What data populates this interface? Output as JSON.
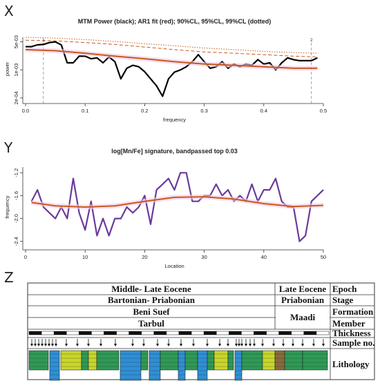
{
  "panels": {
    "x_letter": "X",
    "y_letter": "Y",
    "z_letter": "Z"
  },
  "chart_data": [
    {
      "type": "line",
      "title": "MTM Power (black); AR1 fit (red); 90%CL, 95%CL, 99%CL (dotted)",
      "xlabel": "frequency",
      "ylabel": "power",
      "log_y": true,
      "xlim": [
        0,
        0.5
      ],
      "ylim": [
        0.00017,
        0.0065
      ],
      "x_ticks": [
        "0.0",
        "0.1",
        "0.2",
        "0.3",
        "0.4",
        "0.5"
      ],
      "y_ticks": [
        "2e-04",
        "1e-03",
        "5e-03"
      ],
      "markers": [
        {
          "label": "1",
          "x": 0.03
        },
        {
          "label": "2",
          "x": 0.48
        }
      ],
      "series": [
        {
          "color": "#000000",
          "style": "solid",
          "x": [
            0.0,
            0.01,
            0.02,
            0.03,
            0.04,
            0.05,
            0.06,
            0.07,
            0.08,
            0.09,
            0.1,
            0.11,
            0.12,
            0.13,
            0.14,
            0.15,
            0.16,
            0.17,
            0.18,
            0.19,
            0.2,
            0.21,
            0.22,
            0.23,
            0.24,
            0.25,
            0.26,
            0.27,
            0.28,
            0.29,
            0.3,
            0.31,
            0.32,
            0.33,
            0.34,
            0.35,
            0.36,
            0.37,
            0.38,
            0.39,
            0.4,
            0.41,
            0.42,
            0.43,
            0.44,
            0.45,
            0.46,
            0.47,
            0.48,
            0.49
          ],
          "values": [
            0.0038,
            0.0038,
            0.0042,
            0.0043,
            0.0048,
            0.005,
            0.0042,
            0.0015,
            0.0015,
            0.0022,
            0.0022,
            0.0019,
            0.002,
            0.0015,
            0.0021,
            0.0016,
            0.0006,
            0.0011,
            0.0013,
            0.0012,
            0.0009,
            0.0006,
            0.0004,
            0.00022,
            0.0006,
            0.00088,
            0.001,
            0.0012,
            0.0016,
            0.0024,
            0.0016,
            0.0011,
            0.0012,
            0.0016,
            0.0011,
            0.0014,
            0.0012,
            0.0014,
            0.0013,
            0.0018,
            0.0014,
            0.0015,
            0.001,
            0.0015,
            0.002,
            0.0018,
            0.0017,
            0.0017,
            0.0017,
            0.002
          ]
        },
        {
          "color": "#c35a1c",
          "style": "solid",
          "x": [
            0.0,
            0.05,
            0.1,
            0.15,
            0.2,
            0.25,
            0.3,
            0.35,
            0.4,
            0.45,
            0.49
          ],
          "values": [
            0.0032,
            0.003,
            0.0026,
            0.0022,
            0.0019,
            0.0016,
            0.0014,
            0.0013,
            0.0012,
            0.0011,
            0.0011
          ]
        },
        {
          "color": "#c35a1c",
          "style": "dashed",
          "x": [
            0.0,
            0.05,
            0.1,
            0.15,
            0.2,
            0.25,
            0.3,
            0.35,
            0.4,
            0.45,
            0.49
          ],
          "values": [
            0.0055,
            0.0053,
            0.0048,
            0.0043,
            0.0037,
            0.0032,
            0.0028,
            0.0026,
            0.0024,
            0.0022,
            0.0021
          ]
        },
        {
          "color": "#c35a1c",
          "style": "dotted",
          "x": [
            0.0,
            0.05,
            0.1,
            0.15,
            0.2,
            0.25,
            0.3,
            0.35,
            0.4,
            0.45,
            0.49
          ],
          "values": [
            0.0065,
            0.0062,
            0.0057,
            0.0051,
            0.0045,
            0.004,
            0.0035,
            0.0032,
            0.0029,
            0.0027,
            0.0026
          ]
        }
      ]
    },
    {
      "type": "line",
      "title": "log[Mn/Fe] signature, bandpassed top 0.03",
      "xlabel": "Location",
      "ylabel": "frequency",
      "xlim": [
        0,
        50
      ],
      "ylim": [
        -2.5,
        -1.1
      ],
      "x_ticks": [
        "0",
        "10",
        "20",
        "30",
        "40",
        "50"
      ],
      "y_ticks": [
        "-2.4",
        "-2.0",
        "-1.6",
        "-1.2"
      ],
      "series": [
        {
          "color": "#6a3a9c",
          "style": "solid",
          "x": [
            1,
            2,
            3,
            4,
            5,
            6,
            7,
            8,
            9,
            10,
            11,
            12,
            13,
            14,
            15,
            16,
            17,
            18,
            19,
            20,
            21,
            22,
            23,
            24,
            25,
            26,
            27,
            28,
            29,
            30,
            31,
            32,
            33,
            34,
            35,
            36,
            37,
            38,
            39,
            40,
            41,
            42,
            43,
            44,
            45,
            46,
            47,
            48,
            49,
            50
          ],
          "values": [
            -1.7,
            -1.5,
            -1.8,
            -1.9,
            -2.0,
            -1.8,
            -2.0,
            -1.3,
            -1.9,
            -2.2,
            -1.7,
            -2.3,
            -2.0,
            -2.3,
            -2.0,
            -2.0,
            -1.8,
            -1.9,
            -1.8,
            -1.6,
            -2.1,
            -1.5,
            -1.4,
            -1.3,
            -1.5,
            -1.2,
            -1.2,
            -1.7,
            -1.7,
            -1.6,
            -1.6,
            -1.4,
            -1.6,
            -1.5,
            -1.7,
            -1.6,
            -1.7,
            -1.4,
            -1.7,
            -1.5,
            -1.5,
            -1.3,
            -1.7,
            -1.8,
            -1.8,
            -2.4,
            -2.3,
            -1.7,
            -1.6,
            -1.5
          ]
        },
        {
          "color": "#c35a1c",
          "style": "solid",
          "x": [
            1,
            5,
            10,
            15,
            20,
            25,
            30,
            35,
            40,
            45,
            50
          ],
          "values": [
            -1.72,
            -1.78,
            -1.8,
            -1.78,
            -1.7,
            -1.63,
            -1.62,
            -1.66,
            -1.74,
            -1.79,
            -1.77
          ]
        }
      ]
    }
  ],
  "strat_table": {
    "rows": [
      {
        "left": "Middle- Late Eocene",
        "right": "Late Eocene",
        "label": "Epoch"
      },
      {
        "left": "Bartonian- Priabonian",
        "right": "Priabonian",
        "label": "Stage"
      },
      {
        "left": "Beni Suef",
        "right": "Maadi",
        "label": "Formation"
      },
      {
        "left": "Tarbul",
        "right": "",
        "label": "Member"
      }
    ],
    "thickness_label": "Thickness",
    "sample_label": "Sample no.",
    "lithology_label": "Lithology",
    "colors": {
      "green": "#2e9a56",
      "blue": "#2f8fd6",
      "yellow": "#c9d62a",
      "brown": "#8a6a3a"
    }
  }
}
